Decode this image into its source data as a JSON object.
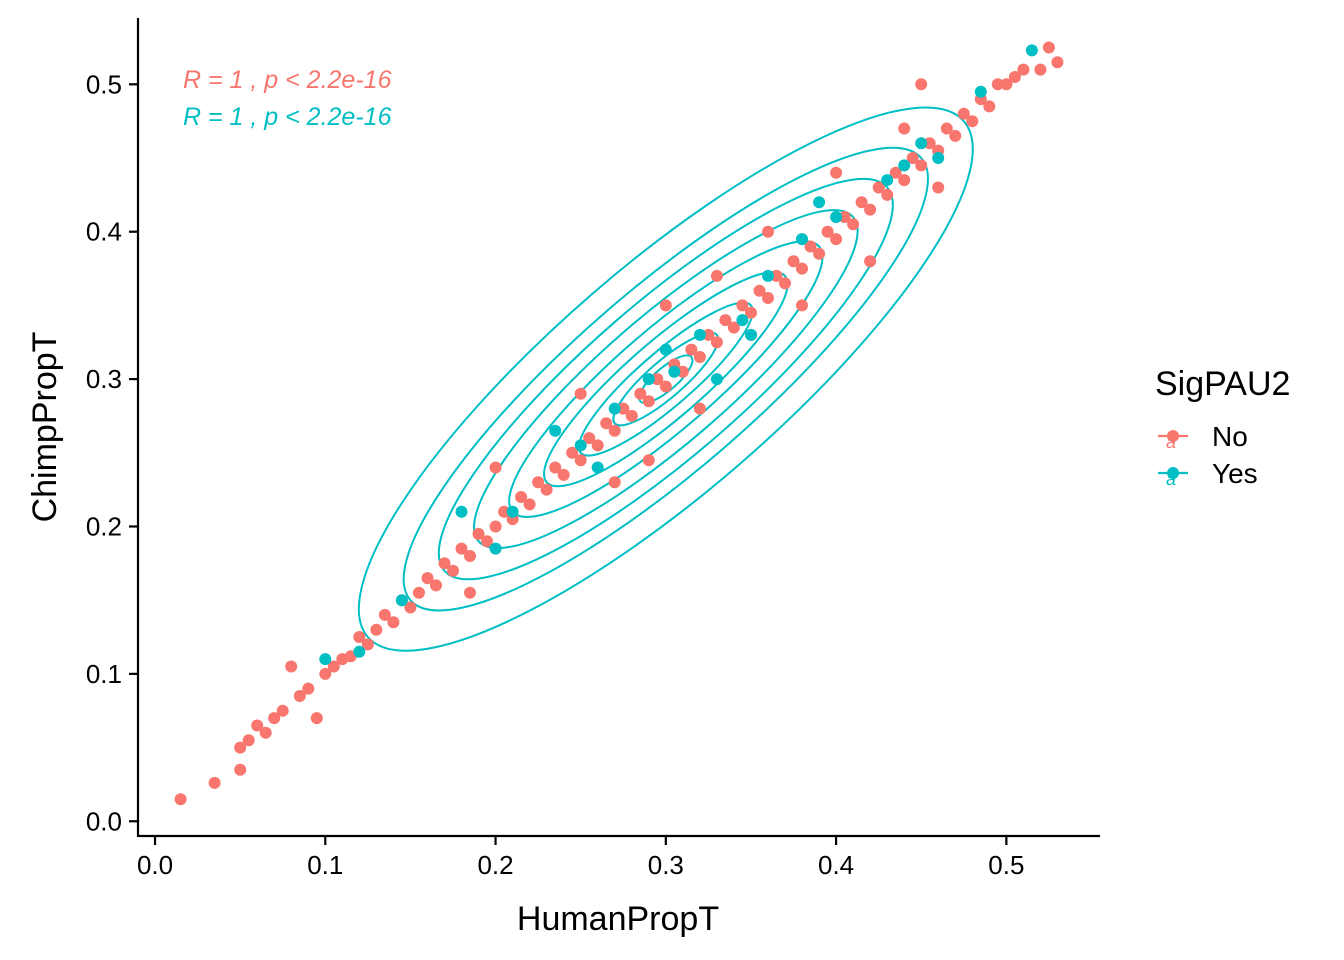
{
  "chart_data": {
    "type": "scatter",
    "xlabel": "HumanPropT",
    "ylabel": "ChimpPropT",
    "xlim": [
      -0.01,
      0.555
    ],
    "ylim": [
      -0.01,
      0.545
    ],
    "x_ticks": [
      "0.0",
      "0.1",
      "0.2",
      "0.3",
      "0.4",
      "0.5"
    ],
    "y_ticks": [
      "0.0",
      "0.1",
      "0.2",
      "0.3",
      "0.4",
      "0.5"
    ],
    "grid": false,
    "legend": {
      "title": "SigPAU2",
      "position": "right",
      "entries": [
        {
          "label": "No",
          "color": "#F8766D"
        },
        {
          "label": "Yes",
          "color": "#00BFC4"
        }
      ]
    },
    "annotations": [
      {
        "text": "R = 1 , p < 2.2e-16",
        "color": "#F8766D"
      },
      {
        "text": "R = 1 , p < 2.2e-16",
        "color": "#00BFC4"
      }
    ],
    "series": [
      {
        "name": "No",
        "color": "#F8766D",
        "points": [
          [
            0.015,
            0.015
          ],
          [
            0.035,
            0.026
          ],
          [
            0.05,
            0.05
          ],
          [
            0.05,
            0.035
          ],
          [
            0.055,
            0.055
          ],
          [
            0.06,
            0.065
          ],
          [
            0.065,
            0.06
          ],
          [
            0.07,
            0.07
          ],
          [
            0.075,
            0.075
          ],
          [
            0.08,
            0.105
          ],
          [
            0.085,
            0.085
          ],
          [
            0.09,
            0.09
          ],
          [
            0.095,
            0.07
          ],
          [
            0.1,
            0.1
          ],
          [
            0.105,
            0.105
          ],
          [
            0.11,
            0.11
          ],
          [
            0.115,
            0.112
          ],
          [
            0.12,
            0.125
          ],
          [
            0.125,
            0.12
          ],
          [
            0.13,
            0.13
          ],
          [
            0.135,
            0.14
          ],
          [
            0.14,
            0.135
          ],
          [
            0.145,
            0.15
          ],
          [
            0.15,
            0.145
          ],
          [
            0.155,
            0.155
          ],
          [
            0.16,
            0.165
          ],
          [
            0.165,
            0.16
          ],
          [
            0.17,
            0.175
          ],
          [
            0.175,
            0.17
          ],
          [
            0.18,
            0.185
          ],
          [
            0.185,
            0.18
          ],
          [
            0.19,
            0.195
          ],
          [
            0.195,
            0.19
          ],
          [
            0.2,
            0.2
          ],
          [
            0.205,
            0.21
          ],
          [
            0.21,
            0.205
          ],
          [
            0.215,
            0.22
          ],
          [
            0.22,
            0.215
          ],
          [
            0.225,
            0.23
          ],
          [
            0.23,
            0.225
          ],
          [
            0.235,
            0.24
          ],
          [
            0.24,
            0.235
          ],
          [
            0.245,
            0.25
          ],
          [
            0.25,
            0.245
          ],
          [
            0.255,
            0.26
          ],
          [
            0.26,
            0.255
          ],
          [
            0.265,
            0.27
          ],
          [
            0.27,
            0.265
          ],
          [
            0.275,
            0.28
          ],
          [
            0.28,
            0.275
          ],
          [
            0.285,
            0.29
          ],
          [
            0.29,
            0.285
          ],
          [
            0.295,
            0.3
          ],
          [
            0.3,
            0.295
          ],
          [
            0.305,
            0.31
          ],
          [
            0.31,
            0.305
          ],
          [
            0.315,
            0.32
          ],
          [
            0.32,
            0.315
          ],
          [
            0.325,
            0.33
          ],
          [
            0.33,
            0.325
          ],
          [
            0.335,
            0.34
          ],
          [
            0.34,
            0.335
          ],
          [
            0.345,
            0.35
          ],
          [
            0.35,
            0.345
          ],
          [
            0.355,
            0.36
          ],
          [
            0.36,
            0.355
          ],
          [
            0.365,
            0.37
          ],
          [
            0.37,
            0.365
          ],
          [
            0.375,
            0.38
          ],
          [
            0.38,
            0.375
          ],
          [
            0.385,
            0.39
          ],
          [
            0.39,
            0.385
          ],
          [
            0.395,
            0.4
          ],
          [
            0.4,
            0.395
          ],
          [
            0.405,
            0.41
          ],
          [
            0.41,
            0.405
          ],
          [
            0.415,
            0.42
          ],
          [
            0.42,
            0.415
          ],
          [
            0.425,
            0.43
          ],
          [
            0.43,
            0.425
          ],
          [
            0.435,
            0.44
          ],
          [
            0.44,
            0.435
          ],
          [
            0.445,
            0.45
          ],
          [
            0.45,
            0.445
          ],
          [
            0.455,
            0.46
          ],
          [
            0.46,
            0.455
          ],
          [
            0.465,
            0.47
          ],
          [
            0.47,
            0.465
          ],
          [
            0.475,
            0.48
          ],
          [
            0.48,
            0.475
          ],
          [
            0.485,
            0.49
          ],
          [
            0.49,
            0.485
          ],
          [
            0.495,
            0.5
          ],
          [
            0.5,
            0.5
          ],
          [
            0.505,
            0.505
          ],
          [
            0.51,
            0.51
          ],
          [
            0.52,
            0.51
          ],
          [
            0.525,
            0.525
          ],
          [
            0.53,
            0.515
          ],
          [
            0.185,
            0.155
          ],
          [
            0.29,
            0.245
          ],
          [
            0.35,
            0.33
          ],
          [
            0.38,
            0.35
          ],
          [
            0.42,
            0.38
          ],
          [
            0.2,
            0.24
          ],
          [
            0.25,
            0.29
          ],
          [
            0.3,
            0.35
          ],
          [
            0.33,
            0.37
          ],
          [
            0.36,
            0.4
          ],
          [
            0.27,
            0.23
          ],
          [
            0.32,
            0.28
          ],
          [
            0.4,
            0.44
          ],
          [
            0.46,
            0.43
          ],
          [
            0.44,
            0.47
          ],
          [
            0.45,
            0.5
          ]
        ]
      },
      {
        "name": "Yes",
        "color": "#00BFC4",
        "points": [
          [
            0.1,
            0.11
          ],
          [
            0.12,
            0.115
          ],
          [
            0.145,
            0.15
          ],
          [
            0.18,
            0.21
          ],
          [
            0.2,
            0.185
          ],
          [
            0.21,
            0.21
          ],
          [
            0.235,
            0.265
          ],
          [
            0.25,
            0.255
          ],
          [
            0.26,
            0.24
          ],
          [
            0.27,
            0.28
          ],
          [
            0.29,
            0.3
          ],
          [
            0.3,
            0.32
          ],
          [
            0.305,
            0.305
          ],
          [
            0.32,
            0.33
          ],
          [
            0.33,
            0.3
          ],
          [
            0.345,
            0.34
          ],
          [
            0.35,
            0.33
          ],
          [
            0.36,
            0.37
          ],
          [
            0.38,
            0.395
          ],
          [
            0.39,
            0.42
          ],
          [
            0.4,
            0.41
          ],
          [
            0.43,
            0.435
          ],
          [
            0.44,
            0.445
          ],
          [
            0.45,
            0.46
          ],
          [
            0.46,
            0.45
          ],
          [
            0.485,
            0.495
          ],
          [
            0.515,
            0.523
          ]
        ]
      }
    ],
    "contours": {
      "series": "Yes",
      "color": "#00BFC4",
      "center": [
        0.3,
        0.3
      ],
      "levels": [
        {
          "sx": 0.175,
          "sy": 0.05
        },
        {
          "sx": 0.15,
          "sy": 0.04
        },
        {
          "sx": 0.13,
          "sy": 0.034
        },
        {
          "sx": 0.11,
          "sy": 0.028
        },
        {
          "sx": 0.09,
          "sy": 0.022
        },
        {
          "sx": 0.07,
          "sy": 0.017
        },
        {
          "sx": 0.05,
          "sy": 0.012
        },
        {
          "sx": 0.03,
          "sy": 0.008
        },
        {
          "sx": 0.015,
          "sy": 0.005
        }
      ]
    }
  }
}
